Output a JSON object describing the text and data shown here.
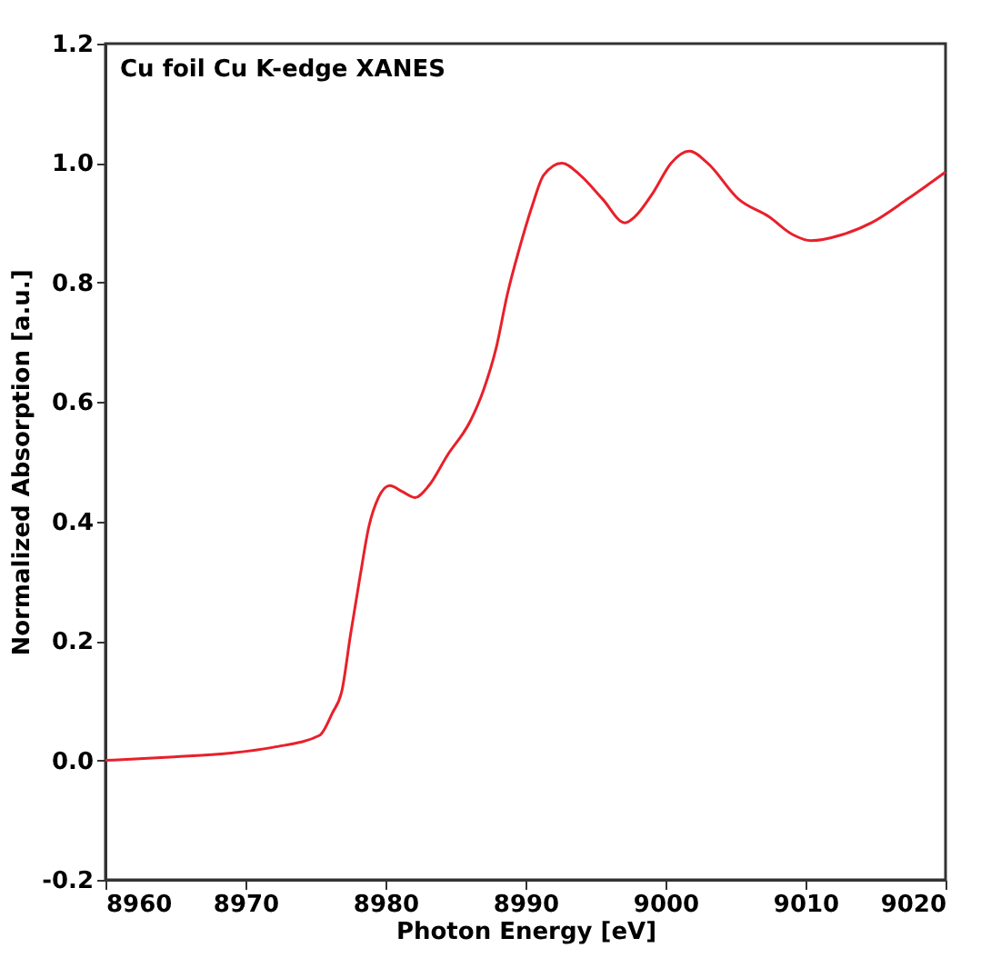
{
  "chart_data": {
    "type": "line",
    "title": "Cu foil Cu K-edge XANES",
    "xlabel": "Photon Energy [eV]",
    "ylabel": "Normalized Absorption [a.u.]",
    "series": [
      {
        "color": "#e8202a",
        "x": [
          8960,
          8964.9,
          8968.8,
          8972,
          8975.3,
          8976.2,
          8976.9,
          8977.5,
          8978.2,
          8978.8,
          8979.5,
          8980.3,
          8981.2,
          8982.1,
          8983.1,
          8984.4,
          8986.1,
          8987,
          8987.9,
          8988.7,
          8989.6,
          8990.5,
          8991.3,
          8992.6,
          8993.9,
          8995.5,
          8997.1,
          8997.8,
          8999.1,
          9000.4,
          9001.7,
          9003,
          9005.2,
          9007.4,
          9009.1,
          9010.4,
          9012.6,
          9014.7,
          9017.3,
          9020
        ],
        "values": [
          0.0,
          0.006,
          0.012,
          0.022,
          0.042,
          0.079,
          0.118,
          0.21,
          0.31,
          0.39,
          0.44,
          0.46,
          0.45,
          0.44,
          0.46,
          0.51,
          0.57,
          0.62,
          0.69,
          0.78,
          0.86,
          0.93,
          0.98,
          1.0,
          0.98,
          0.94,
          0.9,
          0.91,
          0.95,
          1.0,
          1.02,
          1.0,
          0.94,
          0.91,
          0.88,
          0.87,
          0.88,
          0.9,
          0.94,
          0.985
        ]
      }
    ],
    "xlim": [
      8960,
      9020
    ],
    "xticks": [
      8960,
      8970,
      8980,
      8990,
      9000,
      9010,
      9020
    ],
    "ylim": [
      -0.2,
      1.2
    ],
    "yticks": [
      {
        "value": -0.2,
        "label": "-0.2"
      },
      {
        "value": 0,
        "label": "0.0"
      },
      {
        "value": 0.2,
        "label": "0.2"
      },
      {
        "value": 0.4,
        "label": "0.4"
      },
      {
        "value": 0.6,
        "label": "0.6"
      },
      {
        "value": 0.8,
        "label": "0.8"
      },
      {
        "value": 1,
        "label": "1.0"
      },
      {
        "value": 1.2,
        "label": "1.2"
      }
    ],
    "grid": false,
    "legend": false,
    "marker": "none",
    "line_style": "solid"
  }
}
